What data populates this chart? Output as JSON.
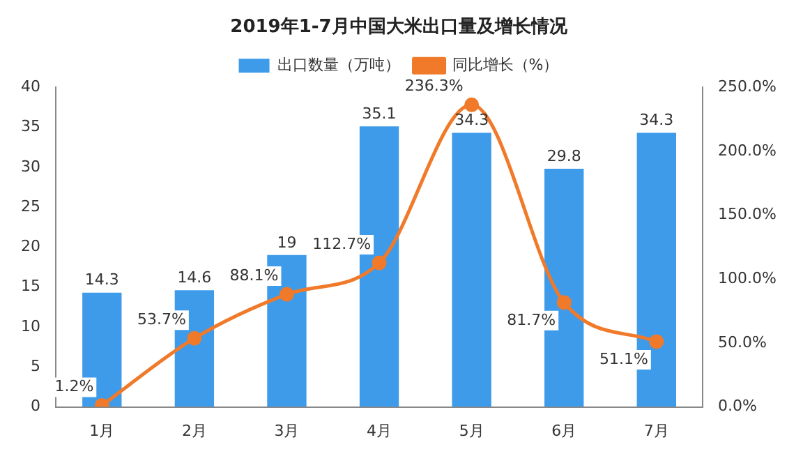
{
  "chart_data": {
    "type": "bar",
    "title": "2019年1-7月中国大米出口量及增长情况",
    "categories": [
      "1月",
      "2月",
      "3月",
      "4月",
      "5月",
      "6月",
      "7月"
    ],
    "series": [
      {
        "name": "出口数量（万吨）",
        "color": "#3d9be9",
        "values": [
          14.3,
          14.6,
          19,
          35.1,
          34.3,
          29.8,
          34.3
        ],
        "value_labels": [
          "14.3",
          "14.6",
          "19",
          "35.1",
          "34.3",
          "29.8",
          "34.3"
        ]
      },
      {
        "name": "同比增长（%）",
        "type": "line",
        "axis": "y2",
        "color": "#f07a2a",
        "marker": "circle",
        "values": [
          1.2,
          53.7,
          88.1,
          112.7,
          236.3,
          81.7,
          51.1
        ],
        "value_labels": [
          "1.2%",
          "53.7%",
          "88.1%",
          "112.7%",
          "236.3%",
          "81.7%",
          "51.1%"
        ]
      }
    ],
    "ylim": [
      0,
      40
    ],
    "yticks": [
      0,
      5,
      10,
      15,
      20,
      25,
      30,
      35,
      40
    ],
    "y2lim": [
      0,
      250
    ],
    "y2ticks": [
      {
        "value": 0,
        "label": "0.0%"
      },
      {
        "value": 50,
        "label": "50.0%"
      },
      {
        "value": 100,
        "label": "100.0%"
      },
      {
        "value": 150,
        "label": "150.0%"
      },
      {
        "value": 200,
        "label": "200.0%"
      },
      {
        "value": 250,
        "label": "250.0%"
      }
    ],
    "grid": false,
    "legend": "top"
  }
}
